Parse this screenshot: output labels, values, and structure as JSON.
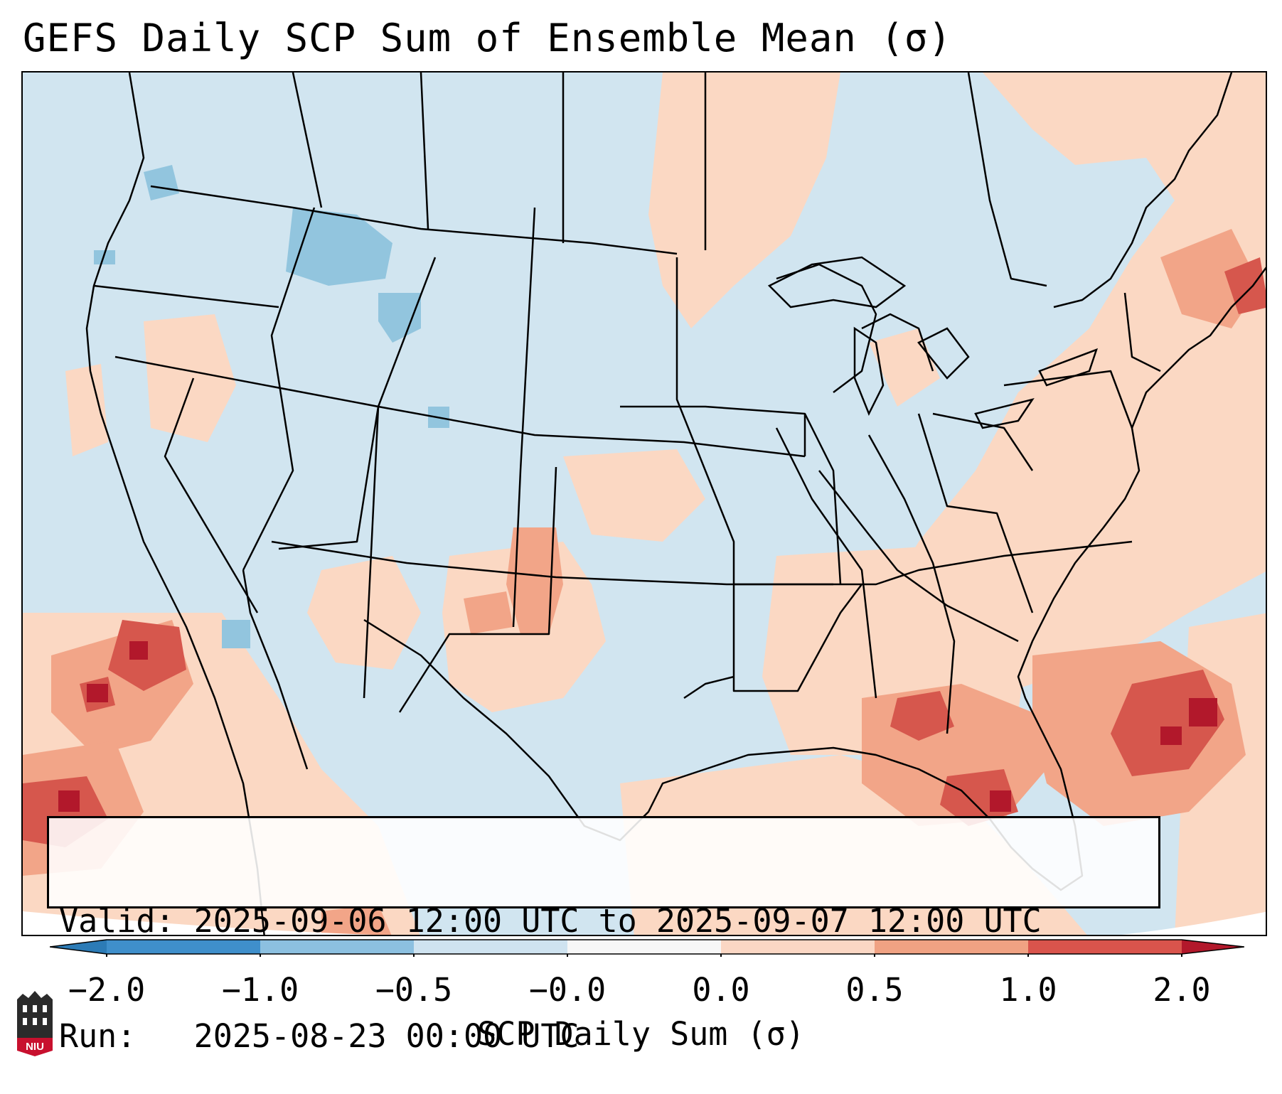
{
  "title": "GEFS Daily SCP Sum of Ensemble Mean (σ)",
  "info": {
    "valid_label": "Valid:",
    "valid_value": "2025-09-06 12:00 UTC to 2025-09-07 12:00 UTC",
    "run_label": "Run:",
    "run_value": "2025-08-23 00:00 UTC"
  },
  "colorbar": {
    "label": "SCP Daily Sum (σ)",
    "ticks": [
      "−2.0",
      "−1.0",
      "−0.5",
      "−0.0",
      "0.0",
      "0.5",
      "1.0",
      "2.0"
    ],
    "colors": [
      "#3f8fcb",
      "#8cc0e0",
      "#cfe3f0",
      "#f7f7f7",
      "#fbd7c4",
      "#f0a283",
      "#d9544c",
      "#b2182b"
    ]
  },
  "logo": {
    "text": "NIU"
  },
  "map": {
    "background_color": "#d1e5f0",
    "positive_color": "#fbd8c3",
    "strong_color": "#f2a588",
    "extreme_color": "#d6574d",
    "peak_color": "#b2182b",
    "negative_color": "#92c5de"
  }
}
